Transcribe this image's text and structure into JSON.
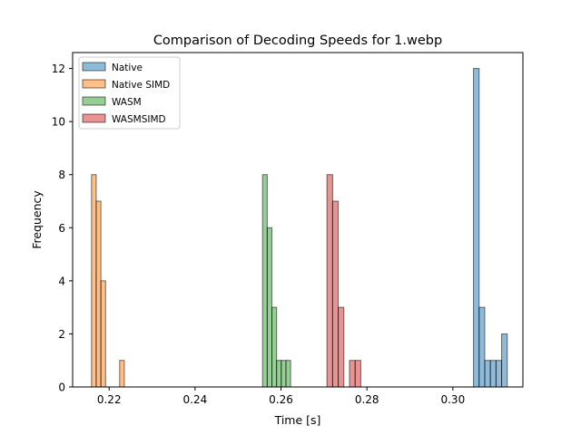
{
  "chart_data": {
    "type": "histogram",
    "title": "Comparison of Decoding Speeds for 1.webp",
    "xlabel": "Time [s]",
    "ylabel": "Frequency",
    "xlim": [
      0.2115,
      0.3163
    ],
    "ylim": [
      0,
      12.6
    ],
    "x_ticks": [
      0.22,
      0.24,
      0.26,
      0.28,
      0.3
    ],
    "x_tick_labels": [
      "0.22",
      "0.24",
      "0.26",
      "0.28",
      "0.30"
    ],
    "y_ticks": [
      0,
      2,
      4,
      6,
      8,
      10,
      12
    ],
    "y_tick_labels": [
      "0",
      "2",
      "4",
      "6",
      "8",
      "10",
      "12"
    ],
    "legend_position": "top-left",
    "series": [
      {
        "name": "Native",
        "color": "#1f77b4",
        "bin_start": 0.3048,
        "bin_width": 0.00131,
        "counts": [
          12,
          3,
          1,
          1,
          1,
          2
        ]
      },
      {
        "name": "Native SIMD",
        "color": "#ff7f0e",
        "bin_start": 0.2159,
        "bin_width": 0.00109,
        "counts": [
          8,
          7,
          4,
          0,
          0,
          0,
          1
        ]
      },
      {
        "name": "WASM",
        "color": "#2ca02c",
        "bin_start": 0.2557,
        "bin_width": 0.00109,
        "counts": [
          8,
          6,
          3,
          1,
          1,
          1
        ]
      },
      {
        "name": "WASMSIMD",
        "color": "#d62728",
        "bin_start": 0.2707,
        "bin_width": 0.00131,
        "counts": [
          8,
          7,
          3,
          0,
          1,
          1
        ]
      }
    ]
  }
}
